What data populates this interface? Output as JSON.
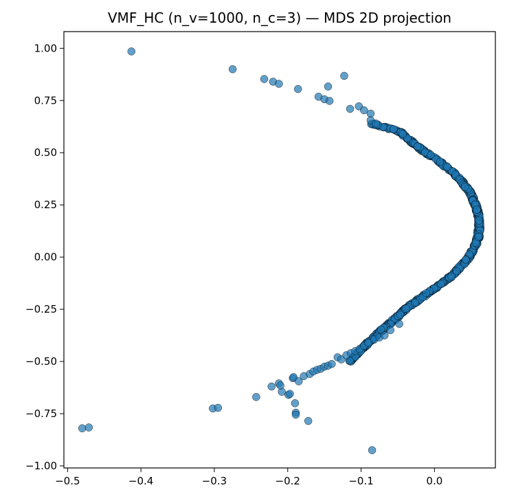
{
  "chart_data": {
    "type": "scatter",
    "title": "VMF_HC (n_v=1000, n_c=3) — MDS 2D projection",
    "xlabel": "",
    "ylabel": "",
    "xlim": [
      -0.505,
      0.083
    ],
    "ylim": [
      -1.01,
      1.08
    ],
    "xticks": [
      -0.5,
      -0.4,
      -0.3,
      -0.2,
      -0.1,
      0.0
    ],
    "xtick_labels": [
      "−0.5",
      "−0.4",
      "−0.3",
      "−0.2",
      "−0.1",
      "0.0"
    ],
    "yticks": [
      -1.0,
      -0.75,
      -0.5,
      -0.25,
      0.0,
      0.25,
      0.5,
      0.75,
      1.0
    ],
    "ytick_labels": [
      "−1.00",
      "−0.75",
      "−0.50",
      "−0.25",
      "0.00",
      "0.25",
      "0.50",
      "0.75",
      "1.00"
    ],
    "grid": false,
    "marker_color": "#1f77b4",
    "marker_edge_color": "#000000",
    "marker_opacity": 0.7,
    "outlier_points": [
      [
        -0.413,
        0.985
      ],
      [
        -0.275,
        0.9
      ],
      [
        -0.232,
        0.853
      ],
      [
        -0.22,
        0.84
      ],
      [
        -0.212,
        0.83
      ],
      [
        -0.186,
        0.805
      ],
      [
        -0.123,
        0.868
      ],
      [
        -0.145,
        0.817
      ],
      [
        -0.158,
        0.768
      ],
      [
        -0.15,
        0.756
      ],
      [
        -0.143,
        0.748
      ],
      [
        -0.103,
        0.722
      ],
      [
        -0.115,
        0.71
      ],
      [
        -0.096,
        0.703
      ],
      [
        -0.087,
        0.687
      ],
      [
        -0.087,
        0.655
      ],
      [
        -0.08,
        0.64
      ],
      [
        -0.48,
        -0.82
      ],
      [
        -0.471,
        -0.816
      ],
      [
        -0.302,
        -0.725
      ],
      [
        -0.295,
        -0.722
      ],
      [
        -0.243,
        -0.67
      ],
      [
        -0.208,
        -0.645
      ],
      [
        -0.199,
        -0.66
      ],
      [
        -0.197,
        -0.655
      ],
      [
        -0.19,
        -0.7
      ],
      [
        -0.189,
        -0.745
      ],
      [
        -0.189,
        -0.755
      ],
      [
        -0.172,
        -0.785
      ],
      [
        -0.085,
        -0.925
      ],
      [
        -0.222,
        -0.62
      ],
      [
        -0.212,
        -0.605
      ],
      [
        -0.21,
        -0.615
      ],
      [
        -0.193,
        -0.58
      ],
      [
        -0.192,
        -0.575
      ],
      [
        -0.185,
        -0.595
      ],
      [
        -0.178,
        -0.57
      ],
      [
        -0.17,
        -0.56
      ],
      [
        -0.165,
        -0.548
      ],
      [
        -0.16,
        -0.54
      ],
      [
        -0.155,
        -0.535
      ],
      [
        -0.15,
        -0.525
      ],
      [
        -0.145,
        -0.52
      ],
      [
        -0.14,
        -0.512
      ],
      [
        -0.132,
        -0.48
      ],
      [
        -0.127,
        -0.49
      ],
      [
        -0.12,
        -0.47
      ],
      [
        -0.114,
        -0.46
      ],
      [
        -0.108,
        -0.45
      ],
      [
        -0.102,
        -0.44
      ],
      [
        -0.096,
        -0.425
      ],
      [
        -0.09,
        -0.41
      ],
      [
        -0.082,
        -0.395
      ],
      [
        -0.075,
        -0.385
      ],
      [
        -0.068,
        -0.375
      ],
      [
        -0.06,
        -0.35
      ],
      [
        -0.048,
        -0.32
      ]
    ],
    "main_curve": {
      "x_at_y": [
        [
          0.64,
          -0.085
        ],
        [
          0.6,
          -0.047
        ],
        [
          0.55,
          -0.03
        ],
        [
          0.5,
          -0.012
        ],
        [
          0.45,
          0.01
        ],
        [
          0.4,
          0.027
        ],
        [
          0.35,
          0.04
        ],
        [
          0.3,
          0.05
        ],
        [
          0.25,
          0.056
        ],
        [
          0.2,
          0.06
        ],
        [
          0.15,
          0.061
        ],
        [
          0.1,
          0.06
        ],
        [
          0.05,
          0.055
        ],
        [
          0.0,
          0.047
        ],
        [
          -0.05,
          0.035
        ],
        [
          -0.1,
          0.02
        ],
        [
          -0.15,
          0.0
        ],
        [
          -0.2,
          -0.02
        ],
        [
          -0.25,
          -0.04
        ],
        [
          -0.3,
          -0.055
        ],
        [
          -0.35,
          -0.072
        ],
        [
          -0.4,
          -0.087
        ],
        [
          -0.45,
          -0.102
        ],
        [
          -0.5,
          -0.115
        ]
      ],
      "n_points": 900
    }
  }
}
